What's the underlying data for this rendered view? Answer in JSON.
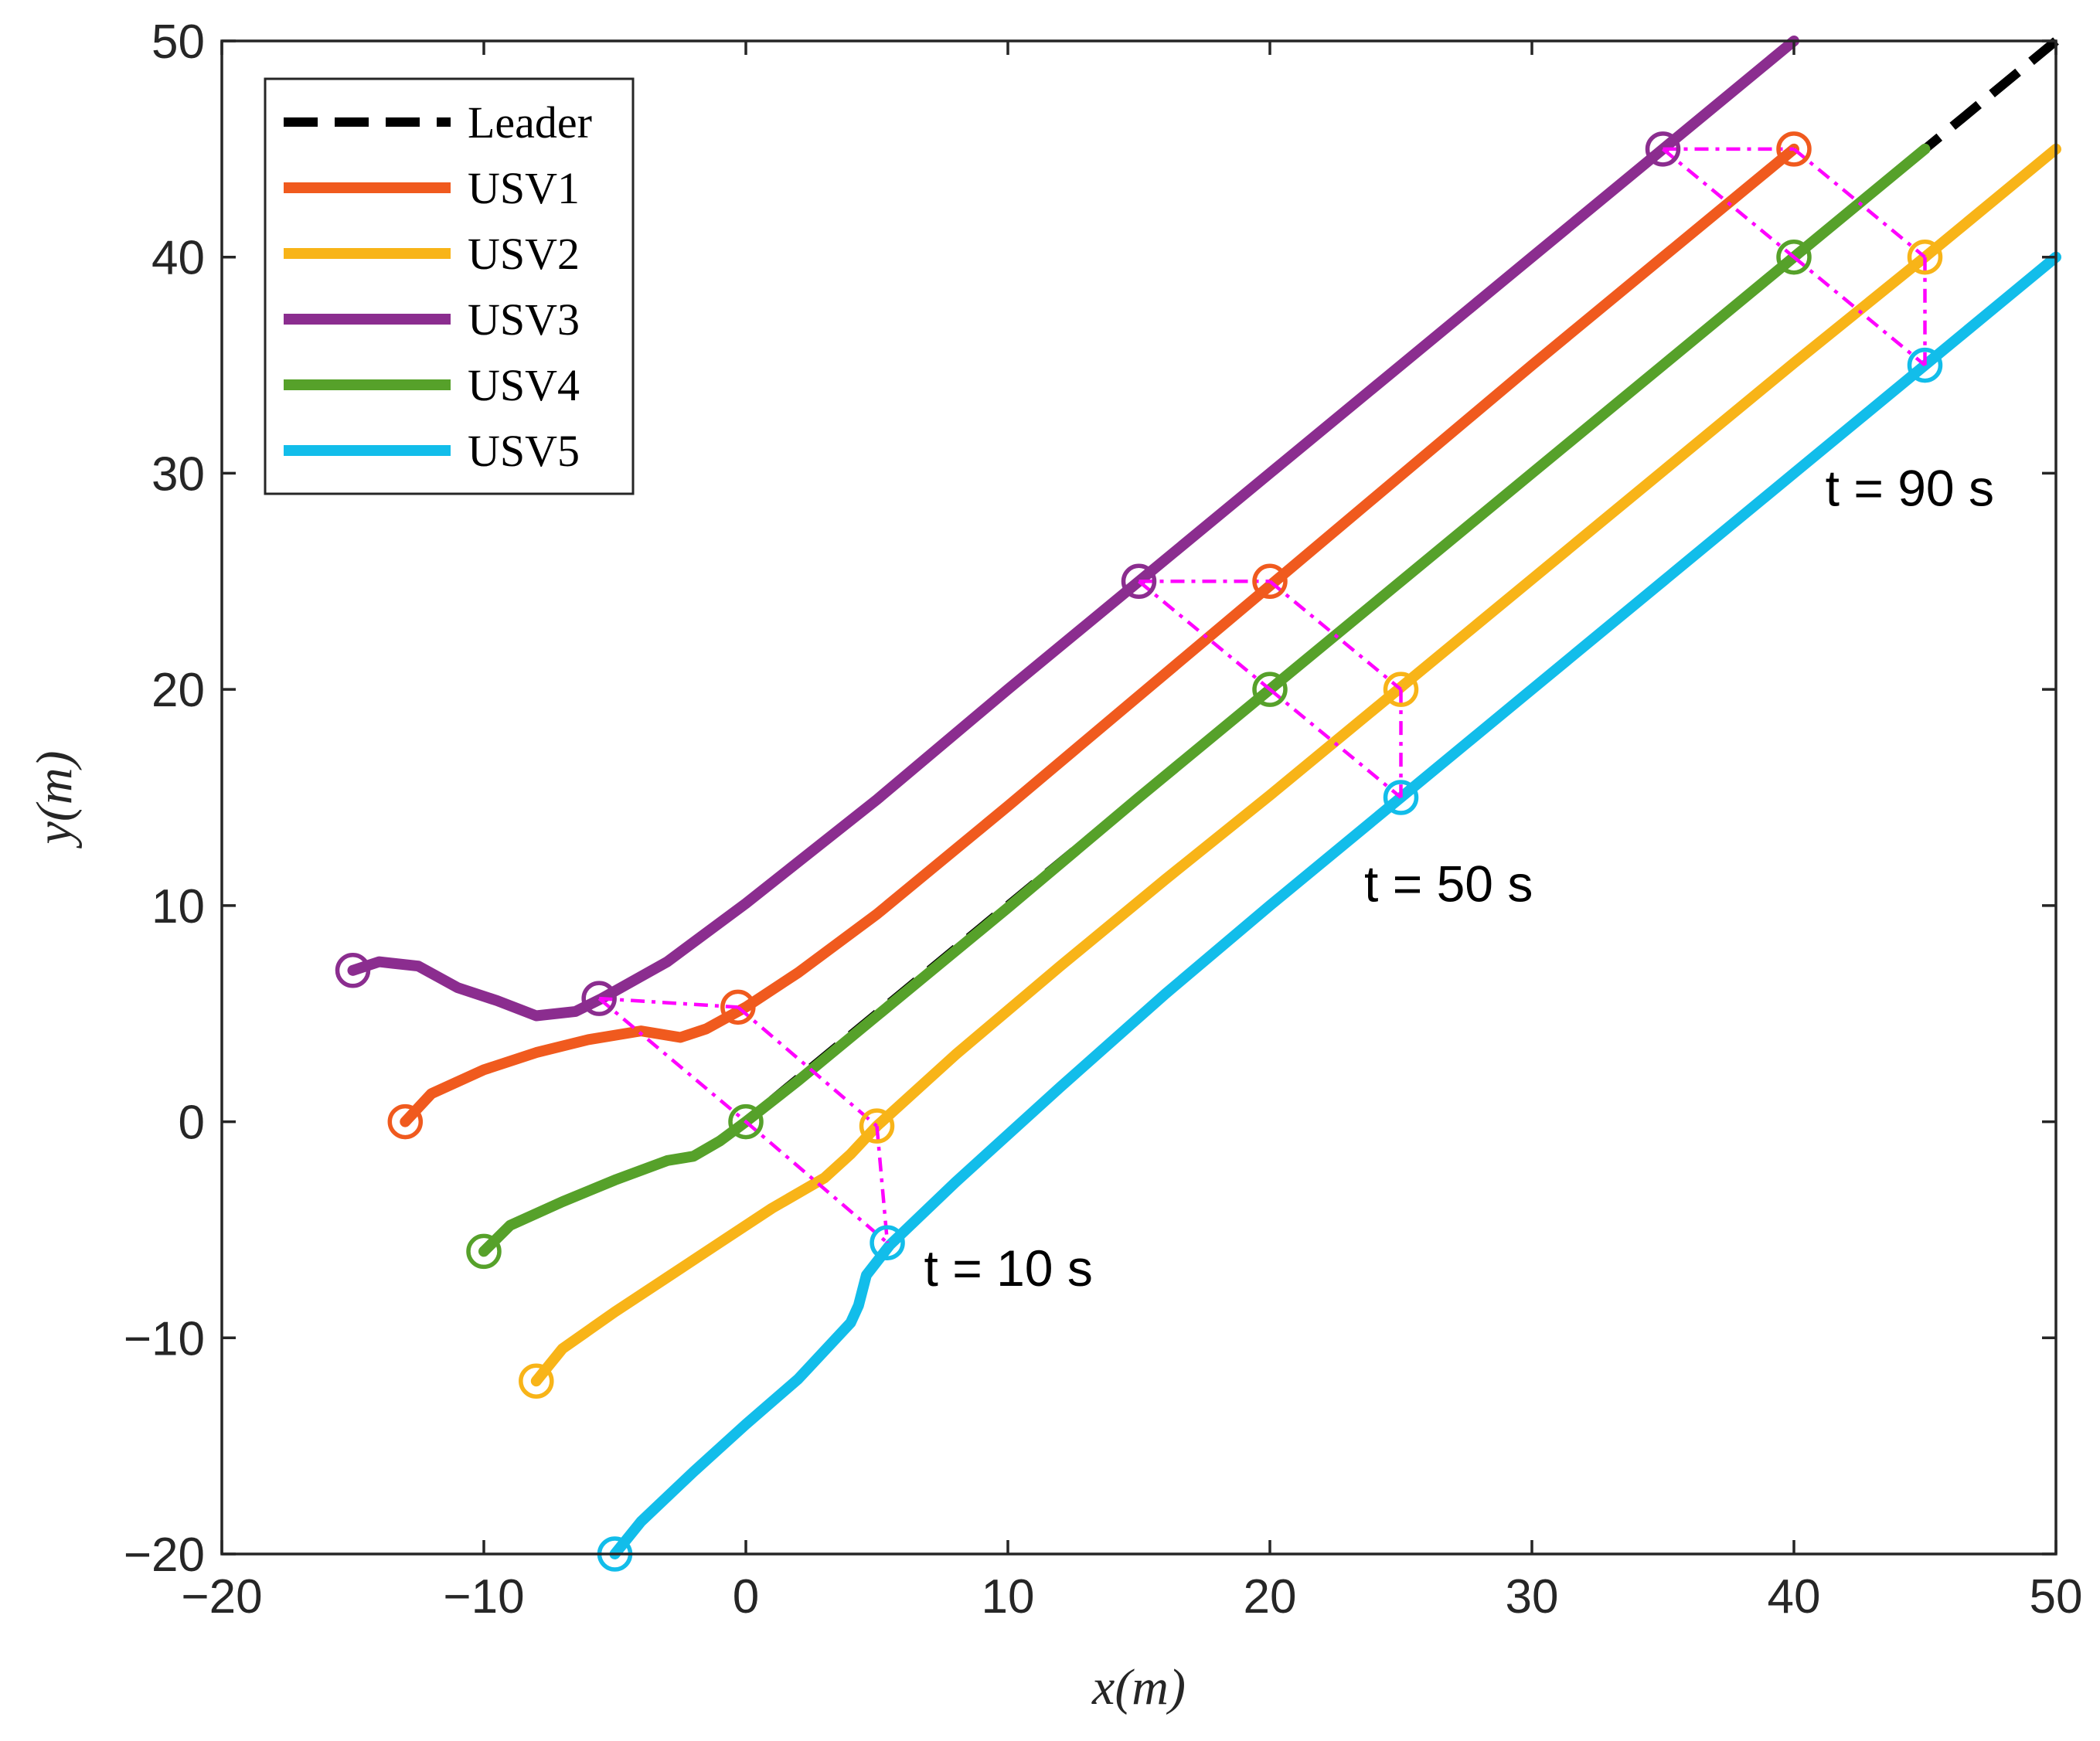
{
  "chart_data": {
    "type": "line",
    "title": "",
    "xlabel": "x(m)",
    "ylabel": "y(m)",
    "xlim": [
      -20,
      50
    ],
    "ylim": [
      -20,
      50
    ],
    "xticks": [
      -20,
      -10,
      0,
      10,
      20,
      30,
      40,
      50
    ],
    "yticks": [
      -20,
      -10,
      0,
      10,
      20,
      30,
      40,
      50
    ],
    "xtick_labels": [
      "−20",
      "−10",
      "0",
      "10",
      "20",
      "30",
      "40",
      "50"
    ],
    "ytick_labels": [
      "−20",
      "−10",
      "0",
      "10",
      "20",
      "30",
      "40",
      "50"
    ],
    "grid": false,
    "legend_position": "top-left",
    "series": [
      {
        "name": "Leader",
        "color": "#000000",
        "style": "dashed",
        "x": [
          -0.5,
          5,
          10,
          20,
          30,
          40,
          45,
          50
        ],
        "y": [
          -0.5,
          5,
          10,
          20,
          30,
          40,
          45,
          50
        ]
      },
      {
        "name": "USV1",
        "color": "#F05A1E",
        "style": "solid",
        "x": [
          -13,
          -12,
          -10,
          -8,
          -6,
          -4,
          -2.5,
          -1.5,
          0,
          2,
          5,
          10,
          15,
          20,
          25,
          30,
          35,
          40
        ],
        "y": [
          0,
          1.3,
          2.4,
          3.2,
          3.8,
          4.2,
          3.9,
          4.3,
          5.3,
          6.9,
          9.6,
          14.6,
          19.7,
          24.8,
          29.9,
          35,
          40,
          45
        ]
      },
      {
        "name": "USV2",
        "color": "#F8B418",
        "style": "solid",
        "x": [
          -8,
          -7,
          -5,
          -3,
          -1,
          1,
          3,
          4,
          5,
          8,
          12,
          16,
          20,
          25,
          30,
          35,
          40,
          45,
          50
        ],
        "y": [
          -12,
          -10.5,
          -8.8,
          -7.2,
          -5.6,
          -4,
          -2.6,
          -1.5,
          -0.2,
          3.1,
          7.2,
          11.2,
          15.1,
          20.1,
          25.1,
          30.1,
          35.1,
          40,
          45
        ]
      },
      {
        "name": "USV3",
        "color": "#8B2D8F",
        "style": "solid",
        "x": [
          -15,
          -14,
          -12.5,
          -11,
          -9.5,
          -8,
          -6.5,
          -5.5,
          -3,
          0,
          5,
          10,
          15,
          20,
          25,
          30,
          35,
          40
        ],
        "y": [
          7,
          7.4,
          7.2,
          6.2,
          5.6,
          4.9,
          5.1,
          5.7,
          7.4,
          10.1,
          14.9,
          20,
          25,
          30,
          35,
          40,
          45,
          50
        ]
      },
      {
        "name": "USV4",
        "color": "#56A12A",
        "style": "solid",
        "x": [
          -10,
          -9,
          -7,
          -5,
          -3,
          -2,
          -1,
          0,
          2,
          5,
          10,
          15,
          20,
          25,
          30,
          35,
          40,
          45
        ],
        "y": [
          -6,
          -4.8,
          -3.7,
          -2.7,
          -1.8,
          -1.6,
          -0.9,
          0,
          1.9,
          4.9,
          9.9,
          15,
          20,
          25,
          30,
          35,
          40,
          45
        ]
      },
      {
        "name": "USV5",
        "color": "#12BDEA",
        "style": "solid",
        "x": [
          -5,
          -4,
          -2,
          0,
          2,
          4,
          4.3,
          4.6,
          5.5,
          8,
          12,
          16,
          20,
          25,
          30,
          35,
          40,
          45,
          50
        ],
        "y": [
          -20,
          -18.5,
          -16.2,
          -14,
          -11.9,
          -9.3,
          -8.5,
          -7.1,
          -5.7,
          -2.8,
          1.6,
          5.9,
          10,
          15,
          20,
          25,
          30,
          35,
          40
        ]
      }
    ],
    "formations": [
      {
        "label": "t = 10 s",
        "positions": {
          "USV1": [
            -0.3,
            5.3
          ],
          "USV2": [
            5,
            -0.2
          ],
          "USV3": [
            -5.6,
            5.7
          ],
          "USV4": [
            0,
            0
          ],
          "USV5": [
            5.4,
            -5.6
          ]
        }
      },
      {
        "label": "t = 50 s",
        "positions": {
          "USV1": [
            20,
            25
          ],
          "USV2": [
            25,
            20
          ],
          "USV3": [
            15,
            25
          ],
          "USV4": [
            20,
            20
          ],
          "USV5": [
            25,
            15
          ]
        }
      },
      {
        "label": "t = 90 s",
        "positions": {
          "USV1": [
            40,
            45
          ],
          "USV2": [
            45,
            40
          ],
          "USV3": [
            35,
            45
          ],
          "USV4": [
            40,
            40
          ],
          "USV5": [
            45,
            35
          ]
        }
      }
    ],
    "start_points": {
      "USV1": [
        -13,
        0
      ],
      "USV2": [
        -8,
        -12
      ],
      "USV3": [
        -15,
        7
      ],
      "USV4": [
        -10,
        -6
      ],
      "USV5": [
        -5,
        -20
      ]
    },
    "formation_link_color": "#FF00FF",
    "formation_links": [
      [
        "USV3",
        "USV1"
      ],
      [
        "USV1",
        "USV2"
      ],
      [
        "USV3",
        "USV4"
      ],
      [
        "USV4",
        "USV5"
      ],
      [
        "USV2",
        "USV5"
      ]
    ],
    "annotations": [
      {
        "text": "t = 10 s",
        "x": 6.8,
        "y": -7.6
      },
      {
        "text": "t = 50 s",
        "x": 23.6,
        "y": 10.2
      },
      {
        "text": "t = 90 s",
        "x": 41.2,
        "y": 28.5
      }
    ]
  }
}
